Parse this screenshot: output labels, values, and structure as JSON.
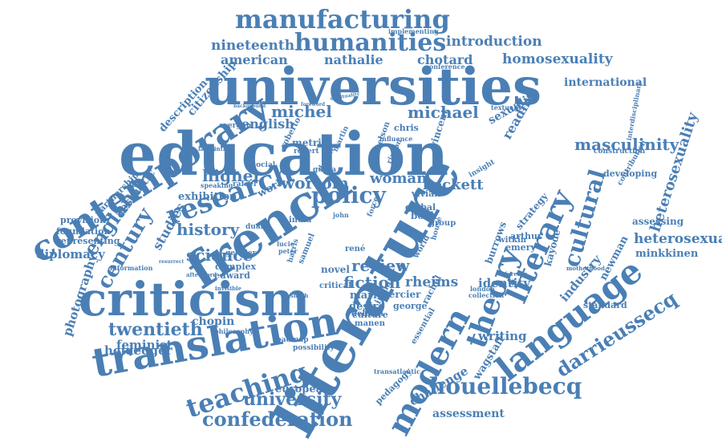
{
  "cloud": {
    "color": "#4a7fb5",
    "words": [
      "literature",
      "education",
      "universities",
      "french",
      "criticism",
      "translation",
      "contemporary",
      "modern",
      "language",
      "literary",
      "theory",
      "research",
      "manufacturing",
      "humanities",
      "teaching",
      "houellebecq",
      "confederation",
      "policy",
      "cultural",
      "century",
      "england",
      "darrieussecq",
      "twentieth",
      "university",
      "masculinity",
      "history",
      "science",
      "review",
      "fiction",
      "michel",
      "michael",
      "wortom",
      "higher",
      "woman",
      "beckett",
      "heterosexuality",
      "heterosexual",
      "homosexuality",
      "introduction",
      "nineteenth",
      "american",
      "nathalie",
      "chotard",
      "english",
      "international",
      "diplomacy",
      "photography",
      "feminist",
      "heidegger",
      "chopin",
      "assessment",
      "challenge",
      "wagstaff",
      "writing",
      "identity",
      "industry",
      "minkkinen",
      "newman",
      "reading",
      "sexuality",
      "studies",
      "exhibition",
      "citizenship",
      "description",
      "aesthetic",
      "partnership",
      "provision",
      "foundation",
      "representing",
      "european",
      "rheims",
      "book",
      "vivian",
      "global",
      "marie",
      "desire",
      "culture",
      "mercier",
      "george",
      "edward",
      "complex",
      "novel",
      "critical",
      "samuel",
      "manen",
      "delmas",
      "roadmap",
      "possibility",
      "pedagogy",
      "transatlantic",
      "essential",
      "indian",
      "rachel",
      "collection",
      "london",
      "emery",
      "witkin",
      "arthur",
      "burrows",
      "kayode",
      "standard",
      "assessing",
      "developing",
      "construction",
      "contribution",
      "interdisciplinary",
      "textuality",
      "insight",
      "strategy",
      "vincent",
      "nelson",
      "martin",
      "metric",
      "robert",
      "gupta",
      "rafael",
      "duane",
      "lucie",
      "peter",
      "john",
      "india",
      "harris",
      "work",
      "social",
      "speaking",
      "evergon",
      "roberto",
      "chris",
      "influence",
      "conference",
      "implementing",
      "gemder",
      "information",
      "philosophy",
      "afterword",
      "invisible",
      "smith",
      "debate",
      "rincon",
      "house",
      "world",
      "group",
      "rené",
      "force",
      "motherhood",
      "foreign",
      "labyrinth",
      "background",
      "foreword",
      "spirituality",
      "resurrect",
      "experience",
      "dimension",
      "funding",
      "academic",
      "bowie"
    ]
  }
}
